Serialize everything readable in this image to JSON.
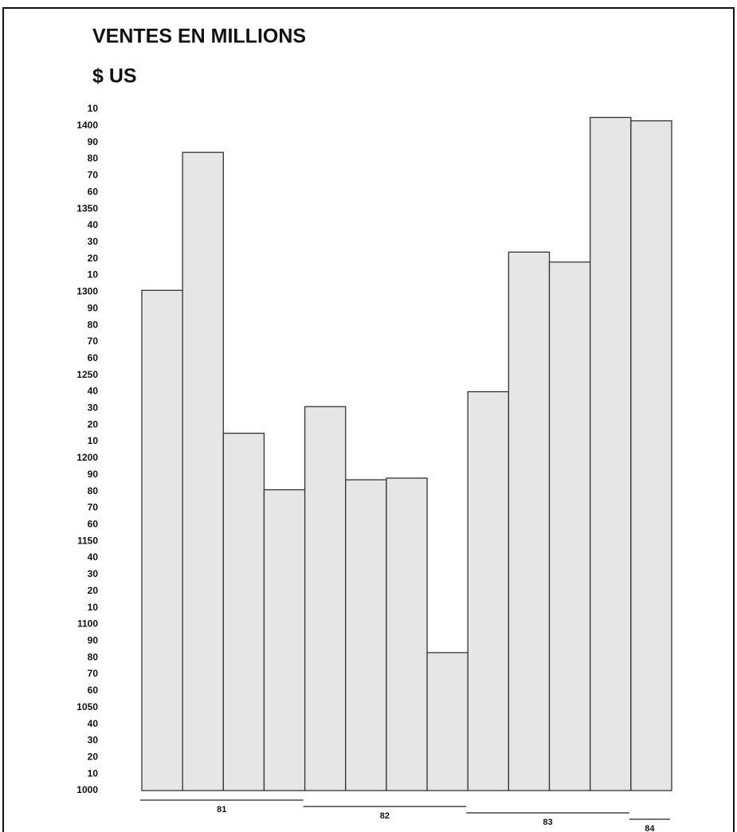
{
  "chart_data": {
    "type": "bar",
    "title": "VENTES EN MILLIONS",
    "subtitle": "$ US",
    "categories": [
      null,
      null,
      null,
      null,
      null,
      null,
      null,
      null,
      null,
      null,
      null,
      null,
      null
    ],
    "x_groups": [
      "81",
      "82",
      "83",
      "84"
    ],
    "values": [
      1301,
      1384,
      1215,
      1181,
      1231,
      1187,
      1188,
      1083,
      1240,
      1324,
      1318,
      1405,
      1403
    ],
    "color": "#e6e6e6",
    "ylim": [
      1000,
      1410
    ],
    "yticks": [
      1000,
      {
        "value": 1010,
        "label": "10"
      },
      {
        "value": 1020,
        "label": "20"
      },
      {
        "value": 1030,
        "label": "30"
      },
      {
        "value": 1040,
        "label": "40"
      },
      1050,
      {
        "value": 1060,
        "label": "60"
      },
      {
        "value": 1070,
        "label": "70"
      },
      {
        "value": 1080,
        "label": "80"
      },
      {
        "value": 1090,
        "label": "90"
      },
      1100,
      {
        "value": 1110,
        "label": "10"
      },
      {
        "value": 1120,
        "label": "20"
      },
      {
        "value": 1130,
        "label": "30"
      },
      {
        "value": 1140,
        "label": "40"
      },
      1150,
      {
        "value": 1160,
        "label": "60"
      },
      {
        "value": 1170,
        "label": "70"
      },
      {
        "value": 1180,
        "label": "80"
      },
      {
        "value": 1190,
        "label": "90"
      },
      1200,
      {
        "value": 1210,
        "label": "10"
      },
      {
        "value": 1220,
        "label": "20"
      },
      {
        "value": 1230,
        "label": "30"
      },
      {
        "value": 1240,
        "label": "40"
      },
      1250,
      {
        "value": 1260,
        "label": "60"
      },
      {
        "value": 1270,
        "label": "70"
      },
      {
        "value": 1280,
        "label": "80"
      },
      {
        "value": 1290,
        "label": "90"
      },
      1300,
      {
        "value": 1310,
        "label": "10"
      },
      {
        "value": 1320,
        "label": "20"
      },
      {
        "value": 1330,
        "label": "30"
      },
      {
        "value": 1340,
        "label": "40"
      },
      1350,
      {
        "value": 1360,
        "label": "60"
      },
      {
        "value": 1370,
        "label": "70"
      },
      {
        "value": 1380,
        "label": "80"
      },
      {
        "value": 1390,
        "label": "90"
      },
      1400,
      {
        "value": 1410,
        "label": "10"
      }
    ],
    "grid": false
  }
}
